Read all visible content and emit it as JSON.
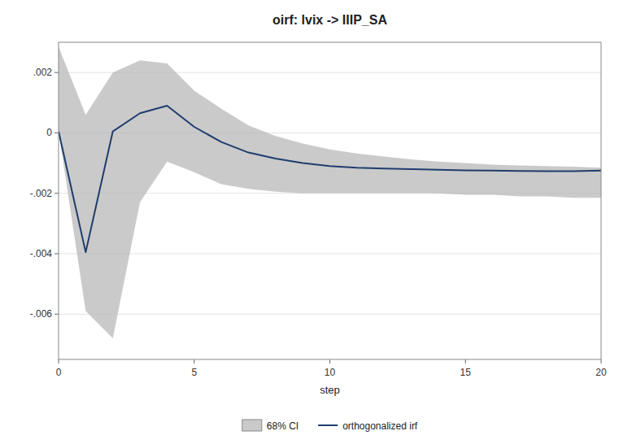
{
  "chart_data": {
    "type": "line",
    "title": "oirf: lvix -> IIIP_SA",
    "xlabel": "step",
    "x": [
      0,
      1,
      2,
      3,
      4,
      5,
      6,
      7,
      8,
      9,
      10,
      11,
      12,
      13,
      14,
      15,
      16,
      17,
      18,
      19,
      20
    ],
    "series": [
      {
        "name": "68% CI",
        "type": "area",
        "color": "#b8b8b8",
        "upper": [
          0.00285,
          0.0006,
          0.002,
          0.0024,
          0.0023,
          0.0014,
          0.0008,
          0.00025,
          -0.0001,
          -0.00035,
          -0.00055,
          -0.00068,
          -0.00078,
          -0.00088,
          -0.00095,
          -0.001,
          -0.00105,
          -0.00108,
          -0.0011,
          -0.00112,
          -0.00115
        ],
        "lower": [
          5e-05,
          -0.0059,
          -0.0068,
          -0.0023,
          -0.00095,
          -0.0013,
          -0.0017,
          -0.00185,
          -0.00195,
          -0.002,
          -0.002,
          -0.002,
          -0.002,
          -0.002,
          -0.002,
          -0.00205,
          -0.00205,
          -0.0021,
          -0.0021,
          -0.00215,
          -0.00215
        ]
      },
      {
        "name": "orthogonalized irf",
        "type": "line",
        "color": "#1f3d6e",
        "values": [
          5e-05,
          -0.00395,
          5e-05,
          0.00065,
          0.0009,
          0.0002,
          -0.0003,
          -0.00065,
          -0.00085,
          -0.001,
          -0.0011,
          -0.00115,
          -0.00118,
          -0.0012,
          -0.00122,
          -0.00124,
          -0.00125,
          -0.00126,
          -0.00127,
          -0.00127,
          -0.00125
        ]
      }
    ],
    "xlim": [
      0,
      20
    ],
    "xticks": [
      0,
      5,
      10,
      15,
      20
    ],
    "ylim": [
      -0.0075,
      0.003
    ],
    "yticks": [
      {
        "value": -0.006,
        "label": "-.006"
      },
      {
        "value": -0.004,
        "label": "-.004"
      },
      {
        "value": -0.002,
        "label": "-.002"
      },
      0,
      {
        "value": 0.002,
        "label": ".002"
      }
    ],
    "grid": true,
    "legend": "bottom"
  }
}
